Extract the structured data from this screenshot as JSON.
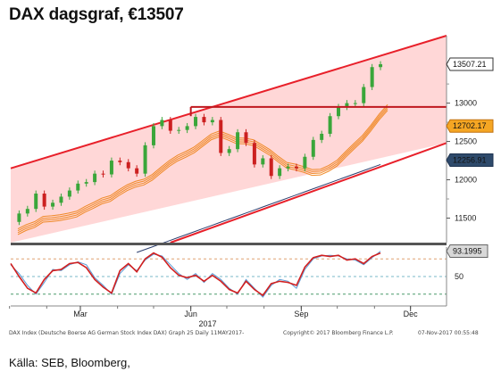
{
  "title": "DAX dagsgraf, €13507",
  "source": "Källa: SEB, Bloomberg,",
  "footer": {
    "left": "DAX Index (Deutsche Boerse AG German Stock Index DAX) Graph 25  Daily 11MAY2017-",
    "middle": "Copyright© 2017 Bloomberg Finance L.P.",
    "right": "07-Nov-2017 00:55:48"
  },
  "colors": {
    "channel_fill": "#ffd7d7",
    "channel_line": "#e8202a",
    "up_candle": "#3aa63a",
    "down_candle": "#cc2020",
    "ma_band": "#f08a28",
    "ma_long": "#2c3e6e",
    "oscillator_red": "#d21f1f",
    "oscillator_blue": "#5b9bd5",
    "badge_last": "#ffffff",
    "badge_resistance": "#f5a623",
    "badge_ma": "#2e4a6b"
  },
  "chart_data": [
    {
      "type": "candlestick",
      "title": "DAX dagsgraf, €13507",
      "ylim": [
        11180,
        13880
      ],
      "y_ticks": [
        11500,
        12000,
        12500,
        13000,
        13507.21
      ],
      "y_tick_labels": [
        "11500",
        "12000",
        "12500",
        "13000"
      ],
      "badges": [
        {
          "label": "13507.21",
          "value": 13507.21,
          "kind": "last"
        },
        {
          "label": "12702.17",
          "value": 12702.17,
          "kind": "resistance"
        },
        {
          "label": "12256.91",
          "value": 12256.91,
          "kind": "ma"
        }
      ],
      "horizontal_line": {
        "value": 12950,
        "from": "2017-06-01"
      },
      "channel": {
        "upper": [
          [
            "2017-01-02",
            12150
          ],
          [
            "2017-11-06",
            13880
          ]
        ],
        "lower": [
          [
            "2017-05-15",
            11180
          ],
          [
            "2017-12-31",
            12480
          ]
        ]
      },
      "x_ticks": [
        "Mar",
        "Jun",
        "Sep",
        "Dec"
      ],
      "x_year": "2017",
      "close": [
        [
          "2017-01-02",
          11450
        ],
        [
          "2017-01-09",
          11560
        ],
        [
          "2017-01-16",
          11620
        ],
        [
          "2017-01-23",
          11820
        ],
        [
          "2017-01-30",
          11650
        ],
        [
          "2017-02-06",
          11700
        ],
        [
          "2017-02-13",
          11780
        ],
        [
          "2017-02-20",
          11860
        ],
        [
          "2017-02-27",
          11950
        ],
        [
          "2017-03-06",
          11970
        ],
        [
          "2017-03-13",
          12080
        ],
        [
          "2017-03-20",
          12070
        ],
        [
          "2017-03-27",
          12250
        ],
        [
          "2017-04-03",
          12230
        ],
        [
          "2017-04-10",
          12150
        ],
        [
          "2017-04-17",
          12080
        ],
        [
          "2017-04-24",
          12450
        ],
        [
          "2017-05-01",
          12700
        ],
        [
          "2017-05-08",
          12780
        ],
        [
          "2017-05-15",
          12640
        ],
        [
          "2017-05-22",
          12650
        ],
        [
          "2017-05-29",
          12700
        ],
        [
          "2017-06-05",
          12820
        ],
        [
          "2017-06-12",
          12750
        ],
        [
          "2017-06-19",
          12780
        ],
        [
          "2017-06-26",
          12350
        ],
        [
          "2017-07-03",
          12400
        ],
        [
          "2017-07-10",
          12620
        ],
        [
          "2017-07-17",
          12480
        ],
        [
          "2017-07-24",
          12200
        ],
        [
          "2017-07-31",
          12280
        ],
        [
          "2017-08-07",
          12050
        ],
        [
          "2017-08-14",
          12150
        ],
        [
          "2017-08-21",
          12170
        ],
        [
          "2017-08-28",
          12150
        ],
        [
          "2017-09-04",
          12300
        ],
        [
          "2017-09-11",
          12520
        ],
        [
          "2017-09-18",
          12600
        ],
        [
          "2017-09-25",
          12830
        ],
        [
          "2017-10-02",
          12950
        ],
        [
          "2017-10-09",
          13000
        ],
        [
          "2017-10-16",
          13000
        ],
        [
          "2017-10-23",
          13210
        ],
        [
          "2017-10-30",
          13470
        ],
        [
          "2017-11-06",
          13507.21
        ]
      ]
    },
    {
      "type": "line",
      "title": "",
      "ylim": [
        0,
        100
      ],
      "y_tick_labels": [
        "50"
      ],
      "badge": {
        "label": "93.1995",
        "value": 93.1995
      },
      "reference_lines": [
        80,
        50,
        20
      ],
      "series": [
        {
          "values": [
            70,
            55,
            35,
            20,
            40,
            62,
            60,
            70,
            75,
            70,
            48,
            35,
            20,
            55,
            70,
            60,
            78,
            88,
            85,
            70,
            55,
            45,
            55,
            40,
            55,
            45,
            30,
            20,
            45,
            30,
            15,
            35,
            45,
            42,
            30,
            62,
            80,
            85,
            86,
            85,
            80,
            78,
            70,
            82,
            93
          ]
        },
        {
          "values": [
            72,
            50,
            30,
            22,
            45,
            60,
            62,
            72,
            74,
            65,
            45,
            32,
            22,
            60,
            72,
            58,
            80,
            90,
            83,
            65,
            52,
            48,
            52,
            42,
            52,
            42,
            28,
            22,
            42,
            28,
            18,
            38,
            42,
            40,
            35,
            66,
            82,
            86,
            84,
            86,
            78,
            80,
            72,
            84,
            90
          ]
        }
      ]
    }
  ]
}
